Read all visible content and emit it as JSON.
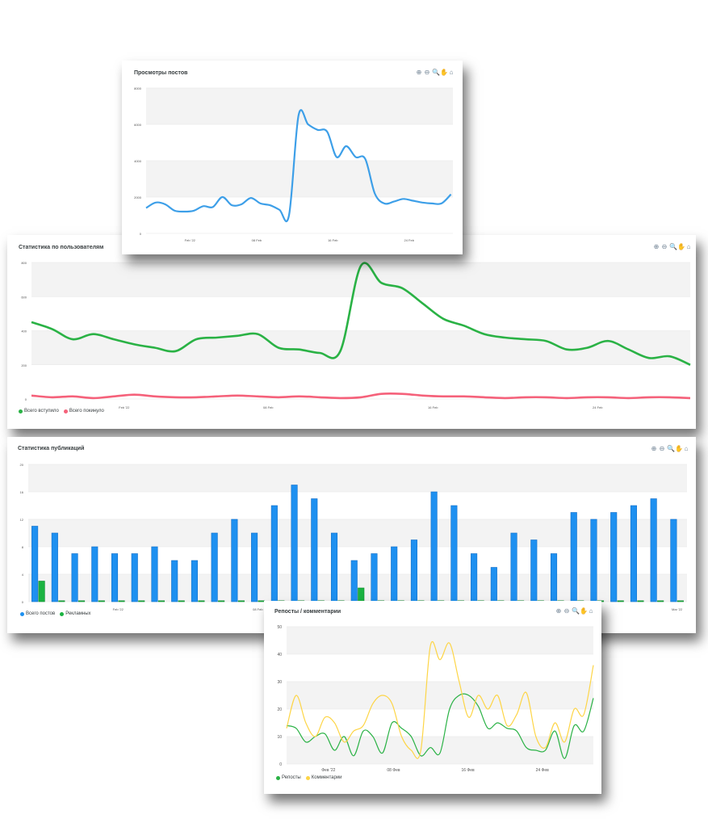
{
  "toolbar_icons": [
    "zoom-in-icon",
    "zoom-out-icon",
    "search-zoom-icon",
    "pan-hand-icon",
    "home-reset-icon"
  ],
  "toolbar_glyphs": [
    "⊕",
    "⊖",
    "🔍",
    "✋",
    "⌂"
  ],
  "chart_data": [
    {
      "id": "views",
      "type": "line",
      "title": "Просмотры постов",
      "ylim": [
        0,
        8000
      ],
      "yticks": [
        0,
        2000,
        4000,
        6000,
        8000
      ],
      "xticks": [
        {
          "x": 2,
          "label": "Feb '22"
        },
        {
          "x": 9,
          "label": "08 Feb"
        },
        {
          "x": 17,
          "label": "16 Feb"
        },
        {
          "x": 25,
          "label": "24 Feb"
        }
      ],
      "xlim": [
        -2.6,
        29.6
      ],
      "grid": true,
      "colors": {
        "line": "#3d9fe8"
      },
      "series": [
        {
          "values": [
            1400,
            1700,
            1600,
            1250,
            1200,
            1250,
            1500,
            1450,
            2000,
            1550,
            1600,
            1950,
            1650,
            1550,
            1300,
            1000,
            6500,
            6000,
            5700,
            5600,
            4200,
            4800,
            4200,
            4100,
            2200,
            1650,
            1750,
            1900,
            1800,
            1700,
            1650,
            1650,
            2150
          ],
          "x_start": -2.6,
          "x_step": 1.0
        }
      ]
    },
    {
      "id": "users",
      "type": "line",
      "title": "Статистика по пользователям",
      "ylim": [
        0,
        800
      ],
      "yticks": [
        0,
        200,
        400,
        600,
        800
      ],
      "xticks": [
        {
          "x": 0,
          "label": "Feb '22"
        },
        {
          "x": 7,
          "label": "08 Feb"
        },
        {
          "x": 15,
          "label": "16 Feb"
        },
        {
          "x": 23,
          "label": "24 Feb"
        }
      ],
      "xlim": [
        -4.5,
        27.5
      ],
      "grid": true,
      "legend_position": "bottom-left",
      "series": [
        {
          "name": "Всего вступило",
          "color": "#2ab245",
          "values": [
            450,
            410,
            350,
            380,
            350,
            320,
            300,
            280,
            350,
            360,
            370,
            380,
            300,
            290,
            270,
            280,
            780,
            680,
            650,
            560,
            470,
            430,
            380,
            360,
            350,
            340,
            290,
            300,
            340,
            290,
            240,
            250,
            200
          ]
        },
        {
          "name": "Всего покинуло",
          "color": "#f5617a",
          "values": [
            20,
            10,
            15,
            5,
            15,
            25,
            15,
            10,
            10,
            15,
            20,
            15,
            10,
            15,
            10,
            5,
            10,
            30,
            30,
            20,
            15,
            15,
            10,
            5,
            10,
            10,
            5,
            10,
            10,
            5,
            10,
            10,
            5
          ]
        }
      ]
    },
    {
      "id": "publications",
      "type": "bar",
      "title": "Статистика публикаций",
      "ylim": [
        0,
        20
      ],
      "yticks": [
        0,
        4,
        8,
        12,
        16,
        20
      ],
      "xticks": [
        {
          "x": 4,
          "label": "Feb '22"
        },
        {
          "x": 11,
          "label": "08 Feb"
        },
        {
          "x": 32,
          "label": "Mar '22"
        }
      ],
      "grid": true,
      "legend_position": "bottom-left",
      "series": [
        {
          "name": "Всего постов",
          "color": "#1e90f0",
          "values": [
            11,
            10,
            7,
            8,
            7,
            7,
            8,
            6,
            6,
            10,
            12,
            10,
            14,
            17,
            15,
            10,
            6,
            7,
            8,
            9,
            16,
            14,
            7,
            5,
            10,
            9,
            7,
            13,
            12,
            13,
            14,
            15,
            12
          ]
        },
        {
          "name": "Рекламных",
          "color": "#1bb341",
          "values": [
            3,
            0,
            0,
            0,
            0,
            0,
            0,
            0,
            0,
            0,
            0,
            0,
            0,
            0,
            0,
            0,
            2,
            0,
            0,
            0,
            0,
            0,
            0,
            0,
            0,
            0,
            0,
            0,
            0,
            0,
            0,
            0,
            0
          ]
        }
      ]
    },
    {
      "id": "reposts",
      "type": "line",
      "title": "Репосты / комментарии",
      "ylim": [
        0,
        50
      ],
      "yticks": [
        0,
        10,
        20,
        30,
        40,
        50
      ],
      "xticks": [
        {
          "x": 4,
          "label": "Фев '22"
        },
        {
          "x": 11,
          "label": "08 Фев"
        },
        {
          "x": 19,
          "label": "16 Фев"
        },
        {
          "x": 27,
          "label": "24 Фев"
        }
      ],
      "xlim": [
        -0.5,
        32.5
      ],
      "grid": true,
      "legend_position": "bottom-left",
      "series": [
        {
          "name": "Репосты",
          "color": "#2ab245",
          "values": [
            14,
            13,
            8,
            10,
            11,
            5,
            10,
            3,
            12,
            10,
            4,
            15,
            13,
            10,
            3,
            6,
            4,
            20,
            25,
            25,
            21,
            13,
            15,
            13,
            12,
            6,
            5,
            5,
            12,
            2,
            14,
            12,
            24
          ]
        },
        {
          "name": "Комментарии",
          "color": "#fdd546",
          "values": [
            13,
            25,
            15,
            10,
            17,
            15,
            8,
            12,
            14,
            22,
            25,
            22,
            10,
            5,
            5,
            43,
            38,
            44,
            30,
            17,
            25,
            20,
            25,
            14,
            18,
            26,
            10,
            6,
            15,
            8,
            20,
            18,
            36
          ]
        }
      ]
    }
  ]
}
